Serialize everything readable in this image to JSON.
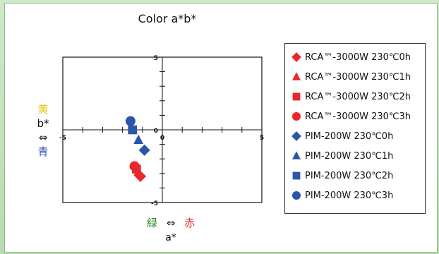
{
  "chart_data": {
    "type": "scatter",
    "title": "Color  a*b*",
    "xlabel": "a*",
    "ylabel": "b*",
    "xlim": [
      -5,
      5
    ],
    "ylim": [
      -5,
      5
    ],
    "x_ticks": [
      "-5",
      "0",
      "5"
    ],
    "y_ticks": [
      "5",
      "0",
      "-5"
    ],
    "grid": false,
    "legend_position": "right",
    "series": [
      {
        "name": "RCA™-3000W 230℃0h",
        "marker": "diamond",
        "color": "#e8262b",
        "points": [
          [
            -1.1,
            -3.2
          ]
        ]
      },
      {
        "name": "RCA™-3000W 230℃1h",
        "marker": "triangle",
        "color": "#e8262b",
        "points": [
          [
            -1.2,
            -2.9
          ]
        ]
      },
      {
        "name": "RCA™-3000W 230℃2h",
        "marker": "square",
        "color": "#e8262b",
        "points": [
          [
            -1.3,
            -2.7
          ]
        ]
      },
      {
        "name": "RCA™-3000W 230℃3h",
        "marker": "circle",
        "color": "#e8262b",
        "points": [
          [
            -1.4,
            -2.5
          ]
        ]
      },
      {
        "name": "PIM-200W 230℃0h",
        "marker": "diamond",
        "color": "#2b55a8",
        "points": [
          [
            -0.9,
            -1.4
          ]
        ]
      },
      {
        "name": "PIM-200W 230℃1h",
        "marker": "triangle",
        "color": "#2b55a8",
        "points": [
          [
            -1.2,
            -0.7
          ]
        ]
      },
      {
        "name": "PIM-200W 230℃2h",
        "marker": "square",
        "color": "#2b55a8",
        "points": [
          [
            -1.5,
            0.0
          ]
        ]
      },
      {
        "name": "PIM-200W 230℃3h",
        "marker": "circle",
        "color": "#2b55a8",
        "points": [
          [
            -1.6,
            0.6
          ]
        ]
      }
    ]
  },
  "axis_annotations": {
    "y": {
      "yellow": "黄",
      "arrow": "⇔",
      "blue": "青",
      "axis": "b*"
    },
    "x": {
      "green": "緑",
      "arrow": "⇔",
      "red": "赤"
    }
  },
  "colors": {
    "yellow": "#e8c21a",
    "blue": "#2b55a8",
    "green": "#2e8b2e",
    "red": "#e8262b"
  }
}
